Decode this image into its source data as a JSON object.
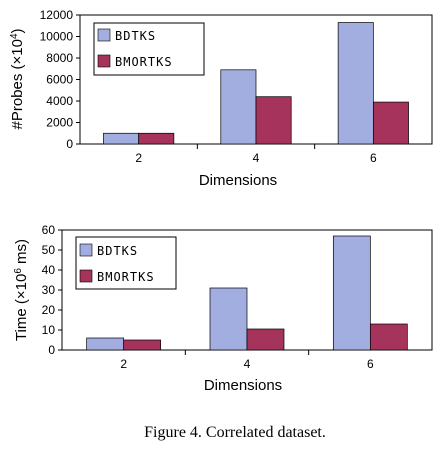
{
  "chart_data": [
    {
      "type": "bar",
      "categories": [
        "2",
        "4",
        "6"
      ],
      "series": [
        {
          "name": "BDTKS",
          "values": [
            1000,
            6900,
            11300
          ],
          "color": "#a3aee0"
        },
        {
          "name": "BMORTKS",
          "values": [
            1000,
            4400,
            3900
          ],
          "color": "#a6335c"
        }
      ],
      "ylim": [
        0,
        12000
      ],
      "yticks": [
        "0",
        "2000",
        "4000",
        "6000",
        "8000",
        "10000",
        "12000"
      ],
      "xlabel": "Dimensions",
      "ylabel_prefix": "#Probes (×10",
      "ylabel_sup": "4",
      "ylabel_suffix": ")",
      "legend_position": "top-left"
    },
    {
      "type": "bar",
      "categories": [
        "2",
        "4",
        "6"
      ],
      "series": [
        {
          "name": "BDTKS",
          "values": [
            6,
            31,
            57
          ],
          "color": "#a3aee0"
        },
        {
          "name": "BMORTKS",
          "values": [
            5,
            10.5,
            13
          ],
          "color": "#a6335c"
        }
      ],
      "ylim": [
        0,
        60
      ],
      "yticks": [
        "0",
        "10",
        "20",
        "30",
        "40",
        "50",
        "60"
      ],
      "xlabel": "Dimensions",
      "ylabel_prefix": "Time (×10",
      "ylabel_sup": "6",
      "ylabel_suffix": " ms)",
      "legend_position": "top-left"
    }
  ],
  "caption": "Figure 4. Correlated dataset."
}
